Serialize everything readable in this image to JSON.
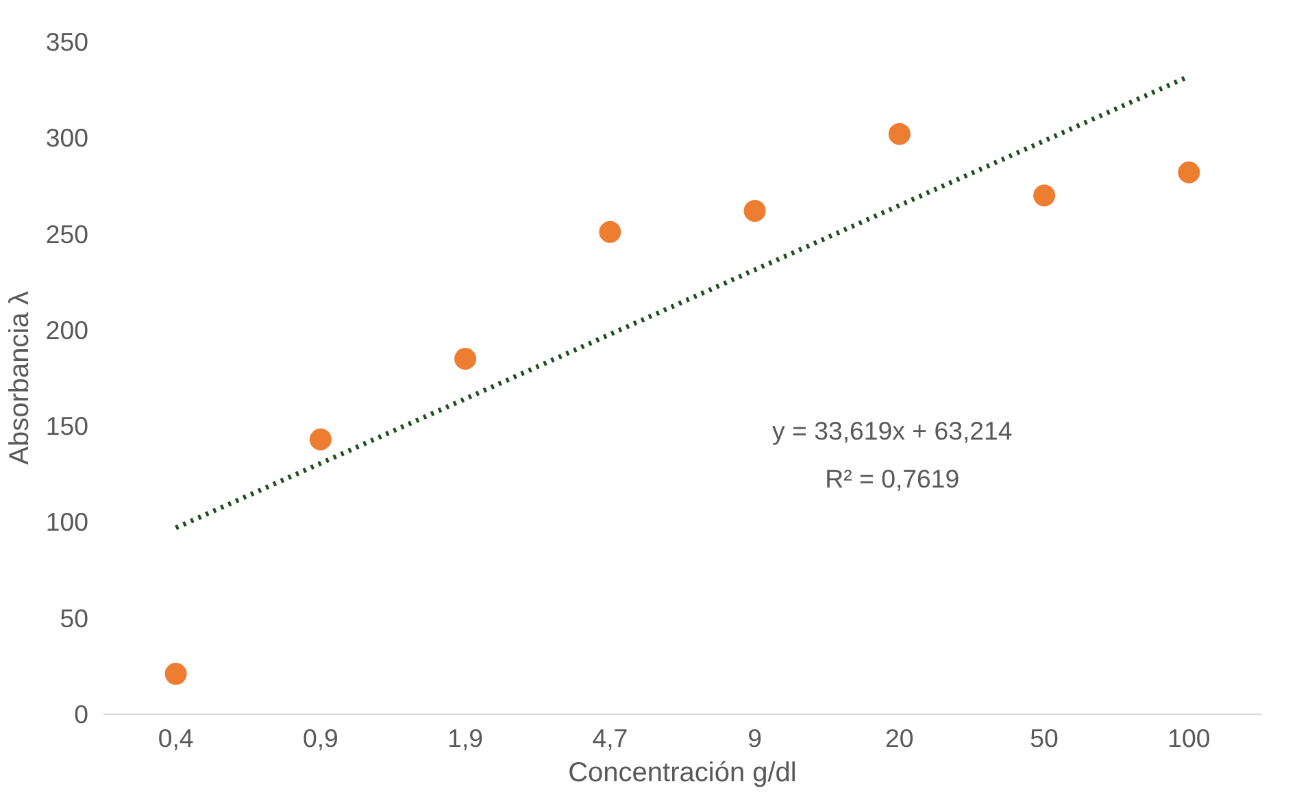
{
  "chart_data": {
    "type": "scatter",
    "xlabel": "Concentración g/dl",
    "ylabel": "Absorbancia λ",
    "categories": [
      "0,4",
      "0,9",
      "1,9",
      "4,7",
      "9",
      "20",
      "50",
      "100"
    ],
    "series": [
      {
        "color": "#ed7d31",
        "marker": "circle",
        "values": [
          21,
          143,
          185,
          251,
          262,
          302,
          270,
          282
        ]
      },
      {
        "type": "line",
        "color": "#1e4d1e",
        "line_style": "dotted",
        "x": [
          "0,4",
          "100"
        ],
        "values": [
          97,
          332
        ]
      }
    ],
    "ylim": [
      0,
      350
    ],
    "yticks": [
      0,
      50,
      100,
      150,
      200,
      250,
      300,
      350
    ],
    "grid": false,
    "annotations": [
      "y = 33,619x + 63,214",
      "R² = 0,7619"
    ]
  }
}
